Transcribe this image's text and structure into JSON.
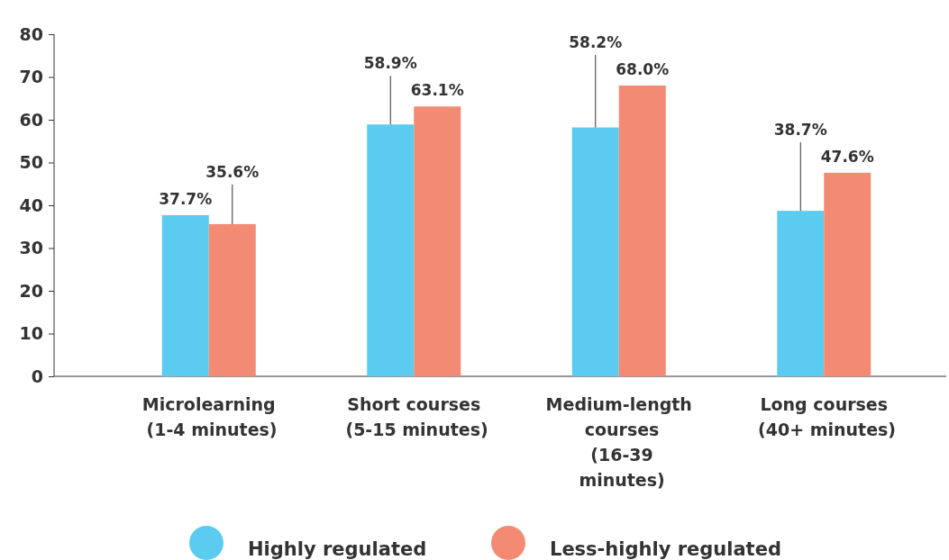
{
  "chart_data": {
    "type": "bar",
    "categories": [
      "Microlearning (1-4 minutes)",
      "Short courses (5-15 minutes)",
      "Medium-length courses (16-39 minutes)",
      "Long courses (40+ minutes)"
    ],
    "series": [
      {
        "name": "Highly regulated",
        "color": "#5bcbf0",
        "values": [
          37.7,
          58.9,
          58.2,
          38.7
        ]
      },
      {
        "name": "Less-highly regulated",
        "color": "#f28a74",
        "values": [
          35.6,
          63.1,
          68.0,
          47.6
        ]
      }
    ],
    "value_labels": [
      [
        "37.7%",
        "58.9%",
        "58.2%",
        "38.7%"
      ],
      [
        "35.6%",
        "63.1%",
        "68.0%",
        "47.6%"
      ]
    ],
    "ylim": [
      0,
      80
    ],
    "yticks": [
      0,
      10,
      20,
      30,
      40,
      50,
      60,
      70,
      80
    ],
    "grid": false,
    "legend": "bottom"
  }
}
